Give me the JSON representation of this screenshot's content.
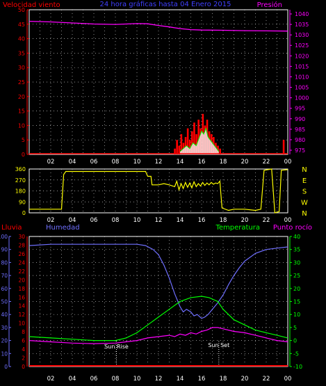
{
  "header": {
    "left_label": "Velocidad viento",
    "title": "24 hora gráficas hasta 04 Enero 2015",
    "right_label": "Presión"
  },
  "hours": [
    "02",
    "04",
    "06",
    "08",
    "10",
    "12",
    "14",
    "16",
    "18",
    "20",
    "22",
    "00"
  ],
  "panel1": {
    "wind_ticks": [
      0,
      5,
      10,
      15,
      20,
      25,
      30,
      35,
      40,
      45,
      50
    ],
    "pressure_ticks": [
      975,
      980,
      985,
      990,
      995,
      1000,
      1005,
      1010,
      1015,
      1020,
      1025,
      1030,
      1035,
      1040
    ],
    "pressure_range": [
      973,
      1042
    ],
    "pressure": [
      [
        0,
        1036.5
      ],
      [
        2,
        1036.2
      ],
      [
        4,
        1035.7
      ],
      [
        6,
        1035.2
      ],
      [
        8,
        1035
      ],
      [
        10,
        1035.4
      ],
      [
        11,
        1035.3
      ],
      [
        12,
        1034.5
      ],
      [
        13,
        1033.8
      ],
      [
        14,
        1033
      ],
      [
        15,
        1032.5
      ],
      [
        16,
        1032.3
      ],
      [
        18,
        1032.2
      ],
      [
        20,
        1032
      ],
      [
        22,
        1031.9
      ],
      [
        24,
        1031.8
      ]
    ],
    "gust_samples": [
      [
        13.5,
        2
      ],
      [
        13.7,
        5
      ],
      [
        13.9,
        3
      ],
      [
        14.1,
        7
      ],
      [
        14.3,
        4
      ],
      [
        14.5,
        6
      ],
      [
        14.7,
        9
      ],
      [
        14.9,
        5
      ],
      [
        15.1,
        8
      ],
      [
        15.3,
        11
      ],
      [
        15.5,
        7
      ],
      [
        15.7,
        12
      ],
      [
        15.9,
        9
      ],
      [
        16.1,
        14
      ],
      [
        16.3,
        10
      ],
      [
        16.5,
        12
      ],
      [
        16.7,
        8
      ],
      [
        16.9,
        7
      ],
      [
        17.1,
        6
      ],
      [
        17.3,
        4
      ],
      [
        17.5,
        3
      ],
      [
        17.7,
        2
      ],
      [
        23.6,
        5
      ]
    ],
    "avg_samples": [
      [
        14,
        1
      ],
      [
        14.3,
        2
      ],
      [
        14.6,
        3
      ],
      [
        14.9,
        2
      ],
      [
        15.2,
        4
      ],
      [
        15.5,
        3
      ],
      [
        15.8,
        6
      ],
      [
        16,
        8
      ],
      [
        16.2,
        7
      ],
      [
        16.4,
        9
      ],
      [
        16.6,
        6
      ],
      [
        16.8,
        5
      ],
      [
        17,
        4
      ],
      [
        17.2,
        3
      ],
      [
        17.4,
        2
      ],
      [
        17.6,
        1
      ]
    ]
  },
  "panel2": {
    "degree_ticks": [
      0,
      90,
      180,
      270,
      360
    ],
    "compass": [
      "N",
      "W",
      "S",
      "E",
      "N"
    ],
    "direction": [
      [
        0,
        30
      ],
      [
        3,
        30
      ],
      [
        3.2,
        315
      ],
      [
        3.4,
        340
      ],
      [
        7,
        340
      ],
      [
        10,
        340
      ],
      [
        10.8,
        340
      ],
      [
        11,
        300
      ],
      [
        11.3,
        300
      ],
      [
        11.4,
        230
      ],
      [
        12,
        230
      ],
      [
        12.5,
        240
      ],
      [
        13,
        230
      ],
      [
        13.5,
        215
      ],
      [
        13.7,
        260
      ],
      [
        13.9,
        190
      ],
      [
        14.1,
        240
      ],
      [
        14.3,
        200
      ],
      [
        14.5,
        250
      ],
      [
        14.7,
        210
      ],
      [
        14.9,
        245
      ],
      [
        15.1,
        205
      ],
      [
        15.3,
        255
      ],
      [
        15.5,
        215
      ],
      [
        15.7,
        240
      ],
      [
        15.9,
        220
      ],
      [
        16.1,
        250
      ],
      [
        16.3,
        225
      ],
      [
        16.5,
        245
      ],
      [
        16.7,
        230
      ],
      [
        16.9,
        250
      ],
      [
        17.1,
        235
      ],
      [
        17.3,
        245
      ],
      [
        17.5,
        240
      ],
      [
        17.7,
        260
      ],
      [
        17.9,
        40
      ],
      [
        18.5,
        20
      ],
      [
        19,
        30
      ],
      [
        20,
        30
      ],
      [
        21,
        20
      ],
      [
        21.5,
        30
      ],
      [
        21.8,
        350
      ],
      [
        22.5,
        360
      ],
      [
        22.8,
        0
      ],
      [
        23.2,
        10
      ],
      [
        23.4,
        350
      ],
      [
        24,
        355
      ]
    ]
  },
  "panel3": {
    "labels": {
      "rain": "Lluvia",
      "humidity": "Humedad",
      "temperature": "Temperatura",
      "dewpoint": "Punto rocío"
    },
    "rain_ticks": [
      0,
      10,
      20,
      30,
      40,
      50,
      60,
      70,
      80,
      90,
      100
    ],
    "humidity_ticks": [
      0,
      2,
      4,
      6,
      8,
      10,
      12,
      14,
      16,
      18,
      20,
      22,
      24,
      26,
      28,
      30
    ],
    "temp_ticks": [
      -10,
      -5,
      0,
      5,
      10,
      15,
      20,
      25,
      30,
      35,
      40
    ],
    "sunrise_label": "Sun Rise",
    "sunset_label": "Sun Set",
    "sunrise_hour": 8.1,
    "sunset_hour": 17.6,
    "humidity": [
      [
        0,
        93
      ],
      [
        2,
        94
      ],
      [
        4,
        94
      ],
      [
        6,
        94
      ],
      [
        8,
        94
      ],
      [
        10,
        94
      ],
      [
        10.8,
        93
      ],
      [
        11.5,
        90
      ],
      [
        12,
        86
      ],
      [
        12.5,
        78
      ],
      [
        13,
        68
      ],
      [
        13.5,
        56
      ],
      [
        14,
        46
      ],
      [
        14.3,
        42
      ],
      [
        14.6,
        44
      ],
      [
        15,
        42
      ],
      [
        15.3,
        39
      ],
      [
        15.6,
        40
      ],
      [
        16,
        37
      ],
      [
        16.3,
        38
      ],
      [
        16.6,
        40
      ],
      [
        17,
        44
      ],
      [
        17.5,
        49
      ],
      [
        18,
        55
      ],
      [
        18.5,
        63
      ],
      [
        19,
        70
      ],
      [
        19.5,
        76
      ],
      [
        20,
        81
      ],
      [
        20.5,
        84
      ],
      [
        21,
        87
      ],
      [
        22,
        90
      ],
      [
        23,
        91
      ],
      [
        24,
        92
      ]
    ],
    "temperature": [
      [
        0,
        1.5
      ],
      [
        2,
        1
      ],
      [
        4,
        0.5
      ],
      [
        6,
        0
      ],
      [
        8,
        0
      ],
      [
        9,
        1
      ],
      [
        10,
        3
      ],
      [
        11,
        6
      ],
      [
        12,
        9
      ],
      [
        13,
        12
      ],
      [
        14,
        15
      ],
      [
        15,
        16.5
      ],
      [
        16,
        17
      ],
      [
        16.7,
        16.5
      ],
      [
        17.5,
        15
      ],
      [
        18,
        12
      ],
      [
        19,
        8
      ],
      [
        20,
        6
      ],
      [
        21,
        4
      ],
      [
        22,
        3
      ],
      [
        23,
        2
      ],
      [
        24,
        1
      ]
    ],
    "dewpoint": [
      [
        0,
        0
      ],
      [
        2,
        -0.5
      ],
      [
        4,
        -1
      ],
      [
        6,
        -1.2
      ],
      [
        8,
        -1
      ],
      [
        9,
        -0.5
      ],
      [
        10,
        0
      ],
      [
        11,
        1
      ],
      [
        12,
        1.5
      ],
      [
        13,
        2
      ],
      [
        13.5,
        1.5
      ],
      [
        14,
        2.5
      ],
      [
        14.5,
        2
      ],
      [
        15,
        3
      ],
      [
        15.5,
        2.5
      ],
      [
        16,
        3.5
      ],
      [
        16.5,
        4
      ],
      [
        17,
        5
      ],
      [
        17.5,
        5
      ],
      [
        18,
        4.5
      ],
      [
        19,
        3.5
      ],
      [
        20,
        3
      ],
      [
        21,
        2
      ],
      [
        22,
        1
      ],
      [
        23,
        0
      ],
      [
        24,
        -0.5
      ]
    ],
    "rain": [
      [
        0,
        0
      ],
      [
        24,
        0
      ]
    ]
  },
  "colors": {
    "wind": "#ff0000",
    "pressure": "#ff00ff",
    "gust": "#ff0000",
    "avg": "#ffff00",
    "avgfill": "#ffffff",
    "direction": "#ffff00",
    "rain": "#ff0000",
    "humidity": "#6f6fff",
    "temperature": "#00ff00",
    "dewpoint": "#ff00ff",
    "compass": "#ffff00"
  }
}
